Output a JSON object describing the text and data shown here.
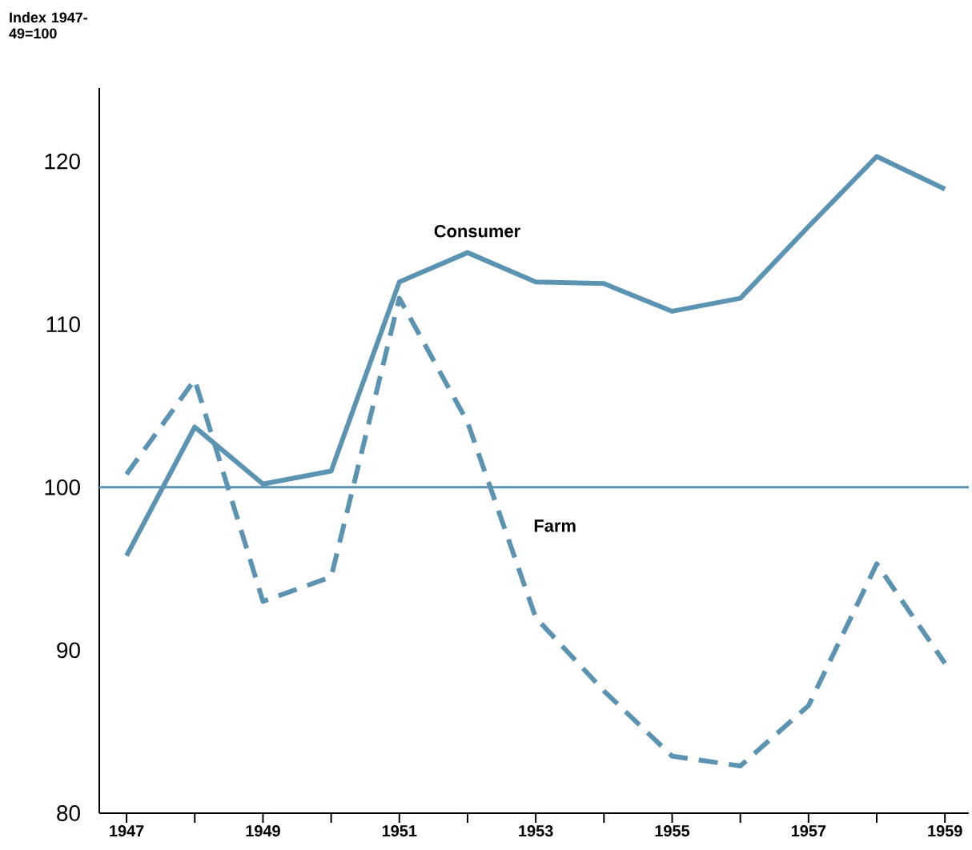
{
  "chart_data": {
    "type": "line",
    "ylabel": "Index 1947-49=100",
    "x": [
      1947,
      1948,
      1949,
      1950,
      1951,
      1952,
      1953,
      1954,
      1955,
      1956,
      1957,
      1958,
      1959
    ],
    "series": [
      {
        "name": "Consumer",
        "color": "#5b93b3",
        "line_style": "solid",
        "values": [
          95.8,
          103.7,
          100.2,
          101,
          112.6,
          114.4,
          112.6,
          112.5,
          110.8,
          111.6,
          116,
          120.3,
          118.3
        ]
      },
      {
        "name": "Farm",
        "color": "#5b93b3",
        "line_style": "dashed",
        "values": [
          100.8,
          106.6,
          93,
          94.5,
          111.6,
          104,
          92,
          87.5,
          83.5,
          82.9,
          86.6,
          95.3,
          89.2
        ]
      }
    ],
    "xlim": [
      1946.6,
      1959.35
    ],
    "ylim": [
      80,
      124.5
    ],
    "xticks": [
      1947,
      {
        "value": 1948,
        "label": null
      },
      1949,
      {
        "value": 1950,
        "label": null
      },
      1951,
      {
        "value": 1952,
        "label": null
      },
      1953,
      {
        "value": 1954,
        "label": null
      },
      1955,
      {
        "value": 1956,
        "label": null
      },
      1957,
      {
        "value": 1958,
        "label": null
      },
      1959
    ],
    "yticks": [
      80,
      90,
      100,
      110,
      120
    ],
    "ref_lines": [
      {
        "axis": "y",
        "value": 100,
        "color": "#5b93b3",
        "line_style": "solid"
      }
    ],
    "grid": false,
    "marker": "none"
  }
}
